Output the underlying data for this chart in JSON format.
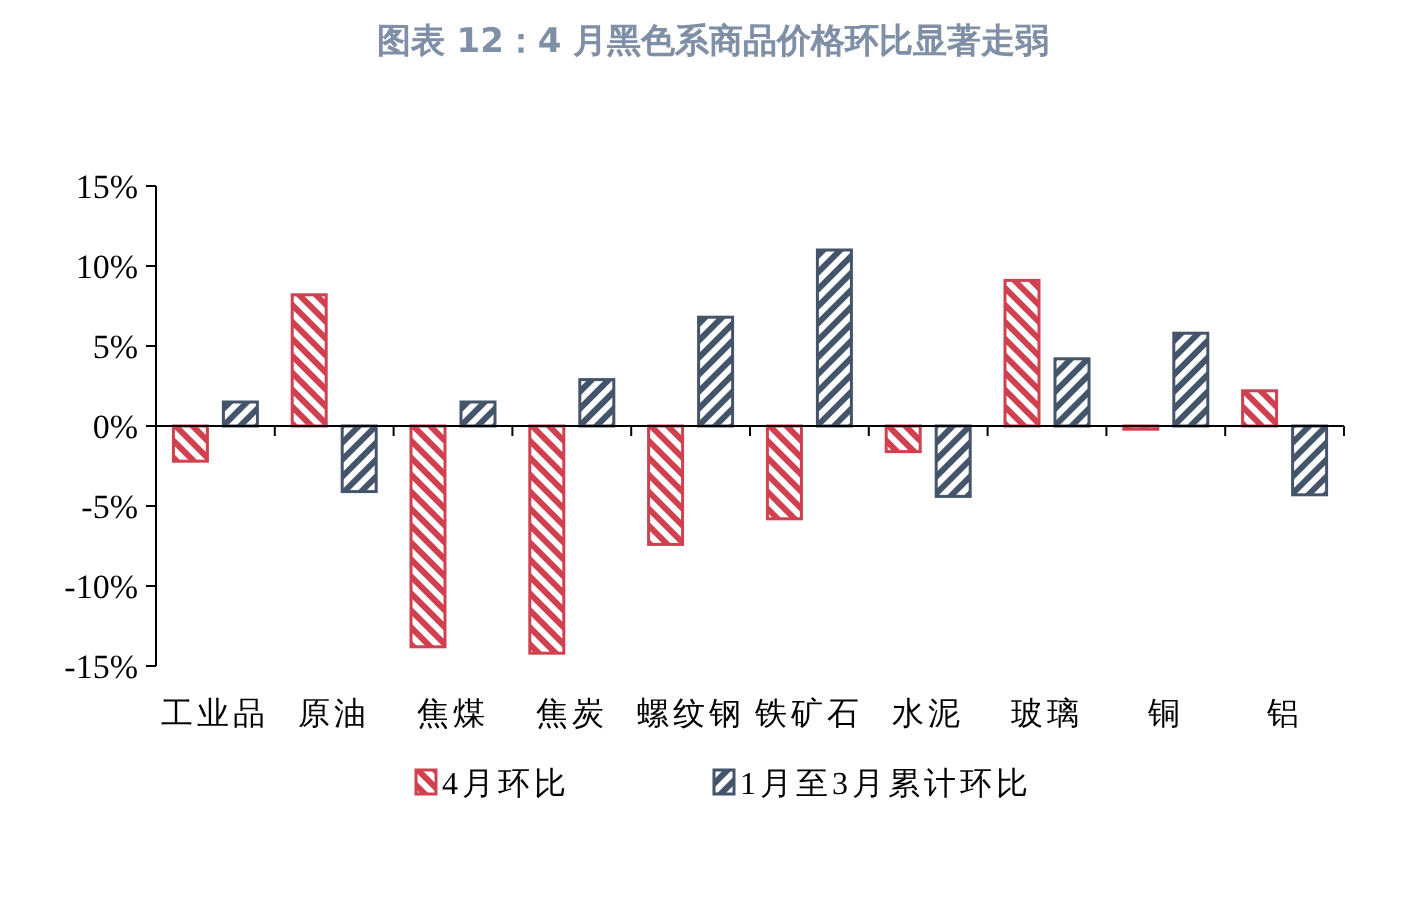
{
  "chart_data": {
    "type": "bar",
    "title": "图表 12：4 月黑色系商品价格环比显著走弱",
    "categories": [
      "工业品",
      "原油",
      "焦煤",
      "焦炭",
      "螺纹钢",
      "铁矿石",
      "水泥",
      "玻璃",
      "铜",
      "铝"
    ],
    "series": [
      {
        "name": "4月环比",
        "color": "#d0404f",
        "values": [
          -2.2,
          8.2,
          -13.8,
          -14.2,
          -7.4,
          -5.8,
          -1.6,
          9.1,
          -0.2,
          2.2
        ]
      },
      {
        "name": "1月至3月累计环比",
        "color": "#44546a",
        "values": [
          1.5,
          -4.1,
          1.5,
          2.9,
          6.8,
          11.0,
          -4.4,
          4.2,
          5.8,
          -4.3
        ]
      }
    ],
    "ylim": [
      -15,
      15
    ],
    "yticks": [
      {
        "value": -15,
        "label": "-15%"
      },
      {
        "value": -10,
        "label": "-10%"
      },
      {
        "value": -5,
        "label": "-5%"
      },
      {
        "value": 0,
        "label": "0%"
      },
      {
        "value": 5,
        "label": "5%"
      },
      {
        "value": 10,
        "label": "10%"
      },
      {
        "value": 15,
        "label": "15%"
      }
    ],
    "legend": "bottom"
  }
}
